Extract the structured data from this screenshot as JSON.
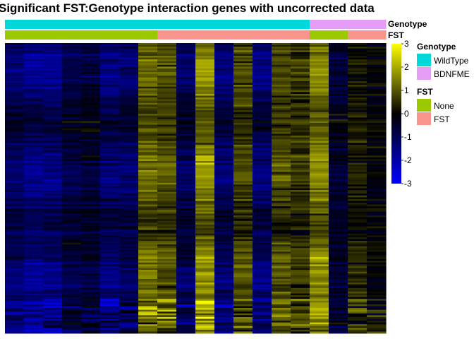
{
  "chart_data": {
    "type": "heatmap",
    "title": "Significant FST:Genotype interaction genes with uncorrected data",
    "n_columns": 20,
    "n_rows": 160,
    "column_annotations": [
      {
        "name": "Genotype",
        "values": [
          "WildType",
          "WildType",
          "WildType",
          "WildType",
          "WildType",
          "WildType",
          "WildType",
          "WildType",
          "WildType",
          "WildType",
          "WildType",
          "WildType",
          "WildType",
          "WildType",
          "WildType",
          "WildType",
          "BDNFME",
          "BDNFME",
          "BDNFME",
          "BDNFME"
        ]
      },
      {
        "name": "FST",
        "values": [
          "None",
          "None",
          "None",
          "None",
          "None",
          "None",
          "None",
          "None",
          "FST",
          "FST",
          "FST",
          "FST",
          "FST",
          "FST",
          "FST",
          "FST",
          "None",
          "None",
          "FST",
          "FST"
        ]
      }
    ],
    "column_profile": [
      -1.2,
      -1.5,
      -1.4,
      -0.8,
      -0.6,
      -1.3,
      -1.1,
      1.2,
      0.9,
      -1.0,
      1.6,
      -1.2,
      0.8,
      -1.3,
      0.9,
      0.6,
      1.5,
      -0.5,
      0.3,
      0.0
    ],
    "color_scale": {
      "min": -3,
      "max": 3,
      "ticks": [
        3,
        2,
        1,
        0,
        -1,
        -2,
        -3
      ],
      "colors": {
        "low": "#0000ff",
        "mid": "#000000",
        "high": "#ffff00"
      }
    },
    "legends": [
      {
        "title": "Genotype",
        "entries": [
          {
            "label": "WildType",
            "color": "#00d8dc"
          },
          {
            "label": "BDNFME",
            "color": "#e49cf4"
          }
        ]
      },
      {
        "title": "FST",
        "entries": [
          {
            "label": "None",
            "color": "#9cc800"
          },
          {
            "label": "FST",
            "color": "#f8948c"
          }
        ]
      }
    ]
  }
}
